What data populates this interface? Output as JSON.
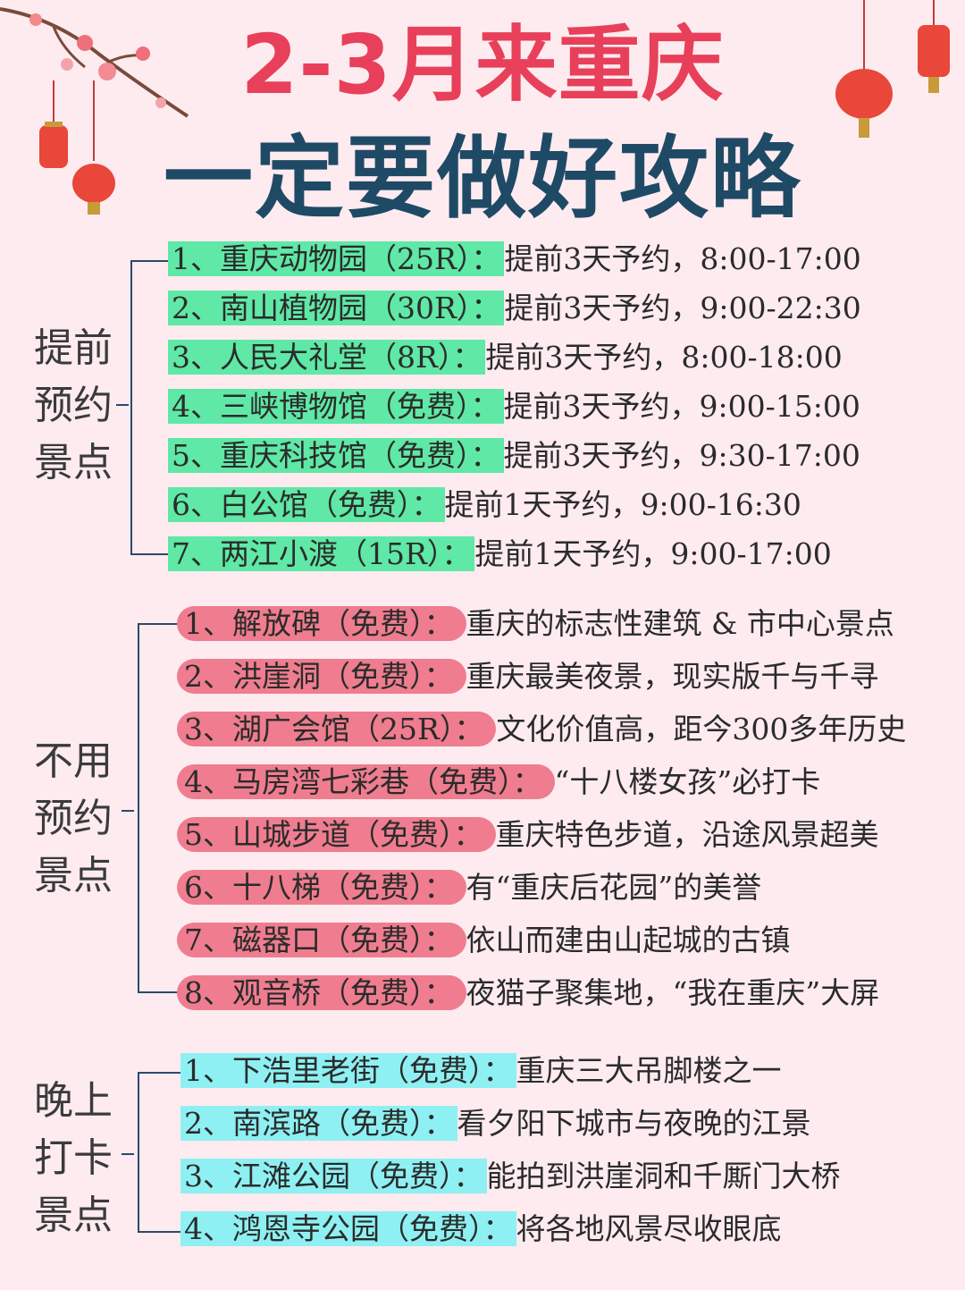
{
  "title": {
    "line1": "2-3月来重庆",
    "line2": "一定要做好攻略"
  },
  "sections": [
    {
      "label": [
        "提前",
        "预约",
        "景点"
      ],
      "highlight": "#5fe8a6",
      "items": [
        {
          "name": "1、重庆动物园（25R）：",
          "desc": "提前3天予约，8:00-17:00"
        },
        {
          "name": "2、南山植物园（30R）：",
          "desc": "提前3天予约，9:00-22:30"
        },
        {
          "name": "3、人民大礼堂（8R）：",
          "desc": "提前3天予约，8:00-18:00"
        },
        {
          "name": "4、三峡博物馆（免费）：",
          "desc": "提前3天予约，9:00-15:00"
        },
        {
          "name": "5、重庆科技馆（免费）：",
          "desc": "提前3天予约，9:30-17:00"
        },
        {
          "name": "6、白公馆（免费）：",
          "desc": "提前1天予约，9:00-16:30"
        },
        {
          "name": "7、两江小渡（15R）：",
          "desc": "提前1天予约，9:00-17:00"
        }
      ]
    },
    {
      "label": [
        "不用",
        "预约",
        "景点"
      ],
      "highlight": "#ef7d8f",
      "items": [
        {
          "name": "1、解放碑（免费）：",
          "desc": "重庆的标志性建筑 & 市中心景点"
        },
        {
          "name": "2、洪崖洞（免费）：",
          "desc": "重庆最美夜景，现实版千与千寻"
        },
        {
          "name": "3、湖广会馆（25R）：",
          "desc": "文化价值高，距今300多年历史"
        },
        {
          "name": "4、马房湾七彩巷（免费）：",
          "desc": "“十八楼女孩”必打卡"
        },
        {
          "name": "5、山城步道（免费）：",
          "desc": "重庆特色步道，沿途风景超美"
        },
        {
          "name": "6、十八梯（免费）：",
          "desc": "有“重庆后花园”的美誉"
        },
        {
          "name": "7、磁器口（免费）：",
          "desc": "依山而建由山起城的古镇"
        },
        {
          "name": "8、观音桥（免费）：",
          "desc": "夜猫子聚集地，“我在重庆”大屏"
        }
      ]
    },
    {
      "label": [
        "晚上",
        "打卡",
        "景点"
      ],
      "highlight": "#8ef0f2",
      "items": [
        {
          "name": "1、下浩里老街（免费）：",
          "desc": "重庆三大吊脚楼之一"
        },
        {
          "name": "2、南滨路（免费）：",
          "desc": "看夕阳下城市与夜晚的江景"
        },
        {
          "name": "3、江滩公园（免费）：",
          "desc": "能拍到洪崖洞和千厮门大桥"
        },
        {
          "name": "4、鸿恩寺公园（免费）：",
          "desc": "将各地风景尽收眼底"
        }
      ]
    }
  ]
}
